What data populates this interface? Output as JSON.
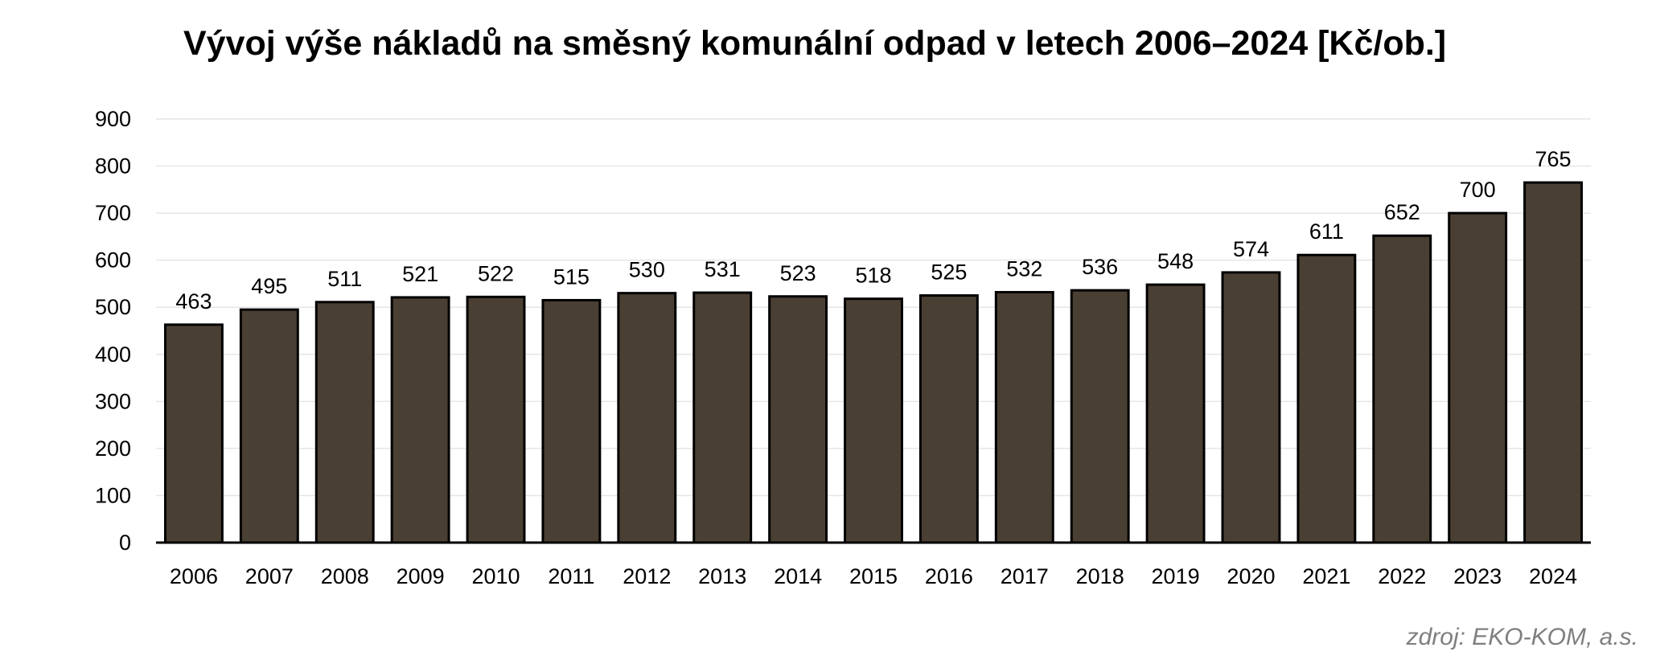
{
  "chart_data": {
    "type": "bar",
    "title": "Vývoj výše nákladů na směsný komunální odpad v letech 2006–2024 [Kč/ob.]",
    "categories": [
      "2006",
      "2007",
      "2008",
      "2009",
      "2010",
      "2011",
      "2012",
      "2013",
      "2014",
      "2015",
      "2016",
      "2017",
      "2018",
      "2019",
      "2020",
      "2021",
      "2022",
      "2023",
      "2024"
    ],
    "values": [
      463,
      495,
      511,
      521,
      522,
      515,
      530,
      531,
      523,
      518,
      525,
      532,
      536,
      548,
      574,
      611,
      652,
      700,
      765
    ],
    "xlabel": "",
    "ylabel": "",
    "ylim": [
      0,
      900
    ],
    "yticks": [
      0,
      100,
      200,
      300,
      400,
      500,
      600,
      700,
      800,
      900
    ],
    "grid": true,
    "legend": "none",
    "data_labels": true,
    "bar_color": "#4a3f33",
    "bar_edge_color": "#000000",
    "grid_color": "#e6e6e6"
  },
  "source_note": "zdroj: EKO-KOM, a.s."
}
